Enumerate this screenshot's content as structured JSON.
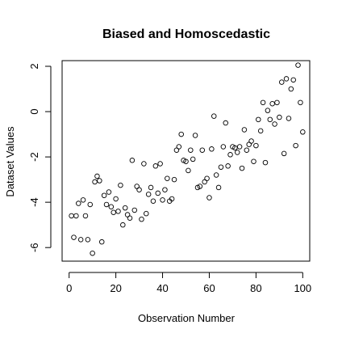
{
  "chart_data": {
    "type": "scatter",
    "title": "Biased and Homoscedastic",
    "xlabel": "Observation Number",
    "ylabel": "Dataset Values",
    "xlim": [
      -3,
      103
    ],
    "ylim": [
      -6.6,
      2.25
    ],
    "xticks": [
      0,
      20,
      40,
      60,
      80,
      100
    ],
    "yticks": [
      -6,
      -4,
      -2,
      0,
      2
    ],
    "grid": false,
    "legend": "none",
    "marker": "open-circle",
    "color": "#000000",
    "x": [
      1,
      2,
      3,
      4,
      5,
      6,
      7,
      8,
      9,
      10,
      11,
      12,
      13,
      14,
      15,
      16,
      17,
      18,
      19,
      20,
      21,
      22,
      23,
      24,
      25,
      26,
      27,
      28,
      29,
      30,
      31,
      32,
      33,
      34,
      35,
      36,
      37,
      38,
      39,
      40,
      41,
      42,
      43,
      44,
      45,
      46,
      47,
      48,
      49,
      50,
      51,
      52,
      53,
      54,
      55,
      56,
      57,
      58,
      59,
      60,
      61,
      62,
      63,
      64,
      65,
      66,
      67,
      68,
      69,
      70,
      71,
      72,
      73,
      74,
      75,
      76,
      77,
      78,
      79,
      80,
      81,
      82,
      83,
      84,
      85,
      86,
      87,
      88,
      89,
      90,
      91,
      92,
      93,
      94,
      95,
      96,
      97,
      98,
      99,
      100
    ],
    "y": [
      -4.6,
      -5.55,
      -4.6,
      -4.05,
      -5.65,
      -3.9,
      -4.6,
      -5.65,
      -4.1,
      -6.25,
      -3.1,
      -2.85,
      -3.05,
      -5.75,
      -3.7,
      -4.1,
      -3.55,
      -4.2,
      -4.45,
      -3.85,
      -4.4,
      -3.25,
      -5.0,
      -4.25,
      -4.55,
      -4.7,
      -2.15,
      -4.35,
      -3.3,
      -3.45,
      -4.75,
      -2.3,
      -4.5,
      -3.65,
      -3.35,
      -3.95,
      -2.4,
      -3.6,
      -2.3,
      -3.9,
      -3.45,
      -2.95,
      -3.95,
      -3.85,
      -3.0,
      -1.7,
      -1.55,
      -1.0,
      -2.15,
      -2.2,
      -2.6,
      -1.7,
      -2.1,
      -1.05,
      -3.35,
      -3.3,
      -1.7,
      -3.1,
      -2.95,
      -3.8,
      -1.65,
      -0.2,
      -2.8,
      -3.35,
      -2.45,
      -1.55,
      -0.5,
      -2.4,
      -1.9,
      -1.55,
      -1.6,
      -1.8,
      -1.55,
      -2.5,
      -0.8,
      -1.7,
      -1.45,
      -1.3,
      -2.2,
      -1.5,
      -0.35,
      -0.85,
      0.4,
      -2.25,
      0.05,
      -0.35,
      0.35,
      -0.55,
      0.4,
      -0.25,
      1.3,
      -1.85,
      1.45,
      -0.3,
      1.0,
      1.4,
      -1.5,
      2.05,
      0.4,
      -0.9
    ]
  }
}
